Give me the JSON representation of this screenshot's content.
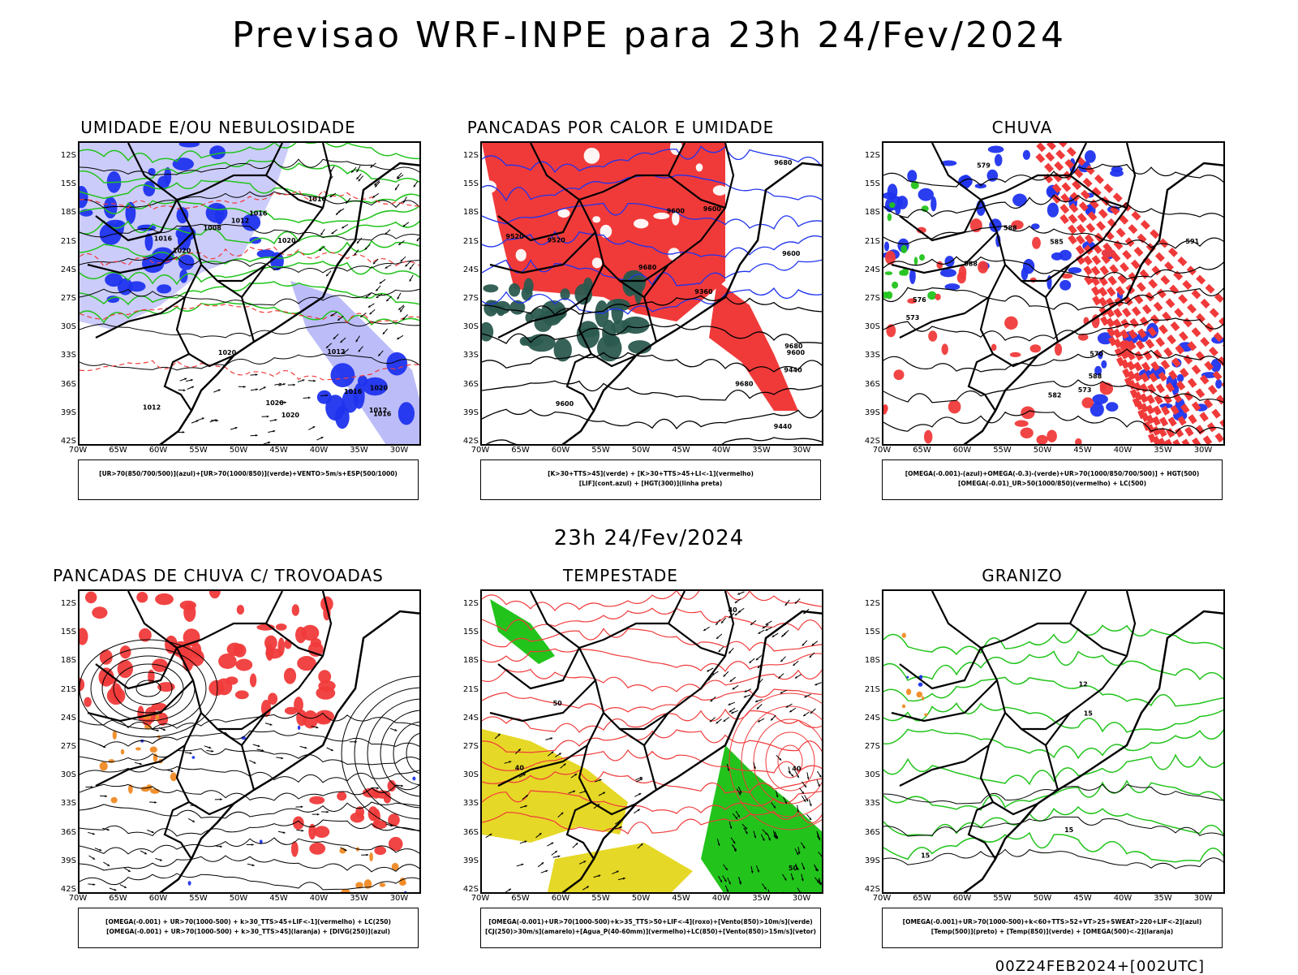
{
  "header": {
    "title": "Previsao WRF-INPE  para 23h 24/Fev/2024"
  },
  "mid_title": "23h 24/Fev/2024",
  "footer": "00Z24FEB2024+[002UTC]",
  "axes": {
    "lat_labels": [
      "12S",
      "15S",
      "18S",
      "21S",
      "24S",
      "27S",
      "30S",
      "33S",
      "36S",
      "39S",
      "42S"
    ],
    "lon_labels": [
      "70W",
      "65W",
      "60W",
      "55W",
      "50W",
      "45W",
      "40W",
      "35W",
      "30W"
    ]
  },
  "panels": [
    {
      "title": "UMIDADE E/OU NEBULOSIDADE",
      "legend": [
        "[UR>70(850/700/500)](azul)+[UR>70(1000/850)](verde)+VENTO>5m/s+ESP(500/1000)"
      ],
      "contour_labels": [
        "1016",
        "1012",
        "1016",
        "1020",
        "1020",
        "1020",
        "1012",
        "1016",
        "1020",
        "1016",
        "1020",
        "1016",
        "1020",
        "1012",
        "1008",
        "1012"
      ]
    },
    {
      "title": "PANCADAS POR CALOR E UMIDADE",
      "legend": [
        "[K>30+TTS>45](verde) + [K>30+TTS>45+LI<-1](vermelho)",
        "[LIF](cont.azul) + [HGT(300)](linha preta)"
      ],
      "contour_labels": [
        "9680",
        "9680",
        "9600",
        "9600",
        "9680",
        "9600",
        "9680",
        "9600",
        "9440",
        "9520",
        "9600",
        "9520",
        "9440",
        "9360"
      ]
    },
    {
      "title": "CHUVA",
      "legend": [
        "[OMEGA(-0.001)-(azul)+OMEGA(-0.3)-(verde)+UR>70(1000/850/700/500)] + HGT(500)",
        "[OMEGA(-0.01)_UR>50(1000/850)(vermelho) + LC(500)"
      ],
      "contour_labels": [
        "588",
        "588",
        "591",
        "588",
        "585",
        "582",
        "579",
        "576",
        "573",
        "570",
        "573"
      ]
    },
    {
      "title": "PANCADAS DE CHUVA C/ TROVOADAS",
      "legend": [
        "[OMEGA(-0.001) + UR>70(1000-500) + k>30_TTS>45+LIF<-1](vermelho) + LC(250)",
        "[OMEGA(-0.001) + UR>70(1000-500) + k>30_TTS>45](laranja) + [DIVG(250)](azul)"
      ]
    },
    {
      "title": "TEMPESTADE",
      "legend": [
        "[OMEGA(-0.001)+UR>70(1000-500)+k>35_TTS>50+LIF<-4](roxo)+[Vento(850)>10m/s](verde)",
        "[CJ(250)>30m/s](amarelo)+[Agua_P(40-60mm)](vermelho)+LC(850)+[Vento(850)>15m/s](vetor)"
      ],
      "contour_labels": [
        "40",
        "50",
        "40",
        "50",
        "40"
      ]
    },
    {
      "title": "GRANIZO",
      "legend": [
        "[OMEGA(-0.001)+UR>70(1000-500)+k<60+TTS>52+VT>25+SWEAT>220+LIF<-2](azul)",
        "[Temp(500)](preto) + [Temp(850)](verde) + [OMEGA(500)<-2](laranja)"
      ],
      "contour_labels": [
        "12",
        "15",
        "15",
        "15"
      ]
    }
  ],
  "colors": {
    "red": "#f03a3a",
    "green": "#22c41c",
    "blue": "#1f33ee",
    "lightblue": "#8f8ff5",
    "darkgreen": "#2b5a4f",
    "yellow": "#e6d826",
    "orange": "#f08a24",
    "black": "#000000"
  }
}
